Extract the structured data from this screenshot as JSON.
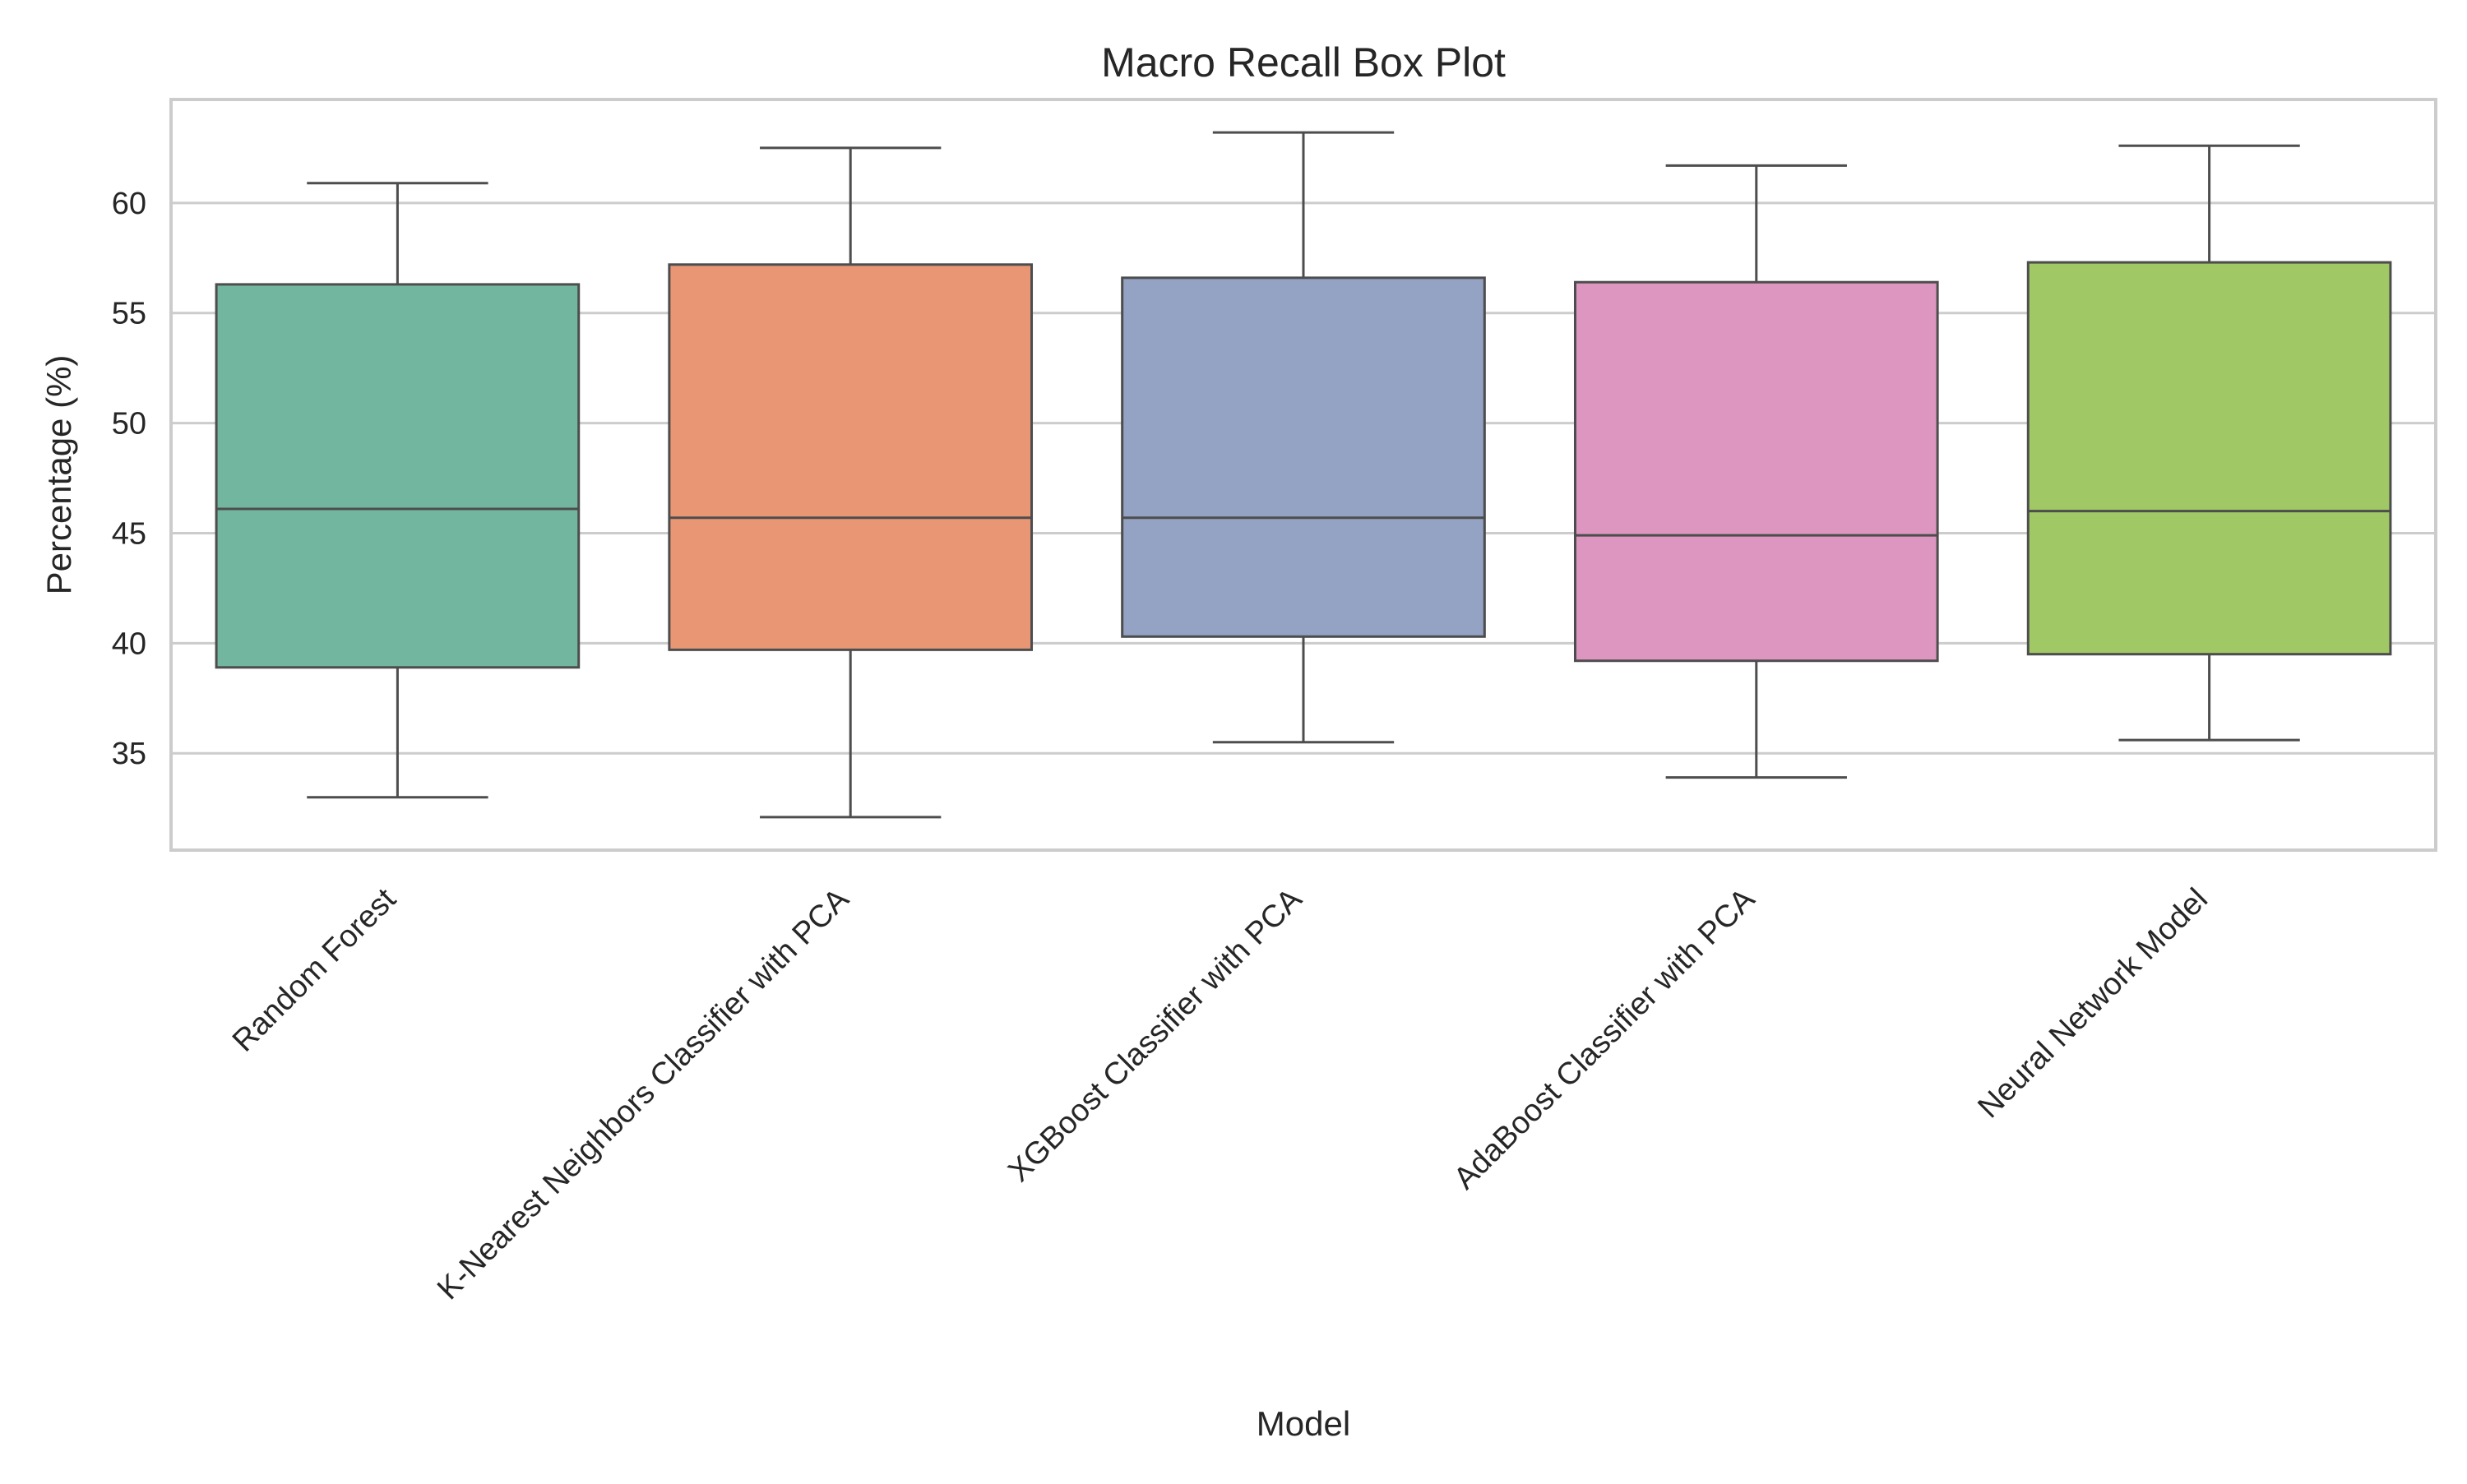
{
  "chart_data": {
    "type": "box",
    "title": "Macro Recall Box Plot",
    "xlabel": "Model",
    "ylabel": "Percentage (%)",
    "ylim": [
      30.6,
      64.7
    ],
    "yticks": [
      35,
      40,
      45,
      50,
      55,
      60
    ],
    "grid": "horizontal",
    "categories": [
      "Random Forest",
      "K-Nearest Neighbors Classifier with PCA",
      "XGBoost Classifier with PCA",
      "AdaBoost Classifier with PCA",
      "Neural Network Model"
    ],
    "series": [
      {
        "category": "Random Forest",
        "whisker_low": 33.0,
        "q1": 38.9,
        "median": 46.1,
        "q3": 56.3,
        "whisker_high": 60.9,
        "color": "#72b6a0"
      },
      {
        "category": "K-Nearest Neighbors Classifier with PCA",
        "whisker_low": 32.1,
        "q1": 39.7,
        "median": 45.7,
        "q3": 57.2,
        "whisker_high": 62.5,
        "color": "#e99675"
      },
      {
        "category": "XGBoost Classifier with PCA",
        "whisker_low": 35.5,
        "q1": 40.3,
        "median": 45.7,
        "q3": 56.6,
        "whisker_high": 63.2,
        "color": "#94a3c3"
      },
      {
        "category": "AdaBoost Classifier with PCA",
        "whisker_low": 33.9,
        "q1": 39.2,
        "median": 44.9,
        "q3": 56.4,
        "whisker_high": 61.7,
        "color": "#dc96c0"
      },
      {
        "category": "Neural Network Model",
        "whisker_low": 35.6,
        "q1": 39.5,
        "median": 46.0,
        "q3": 57.3,
        "whisker_high": 62.6,
        "color": "#a0c865"
      }
    ],
    "colors": {
      "grid": "#cccccc",
      "frame": "#cccccc",
      "box_edge": "#4d4d4d",
      "text": "#262626"
    }
  }
}
